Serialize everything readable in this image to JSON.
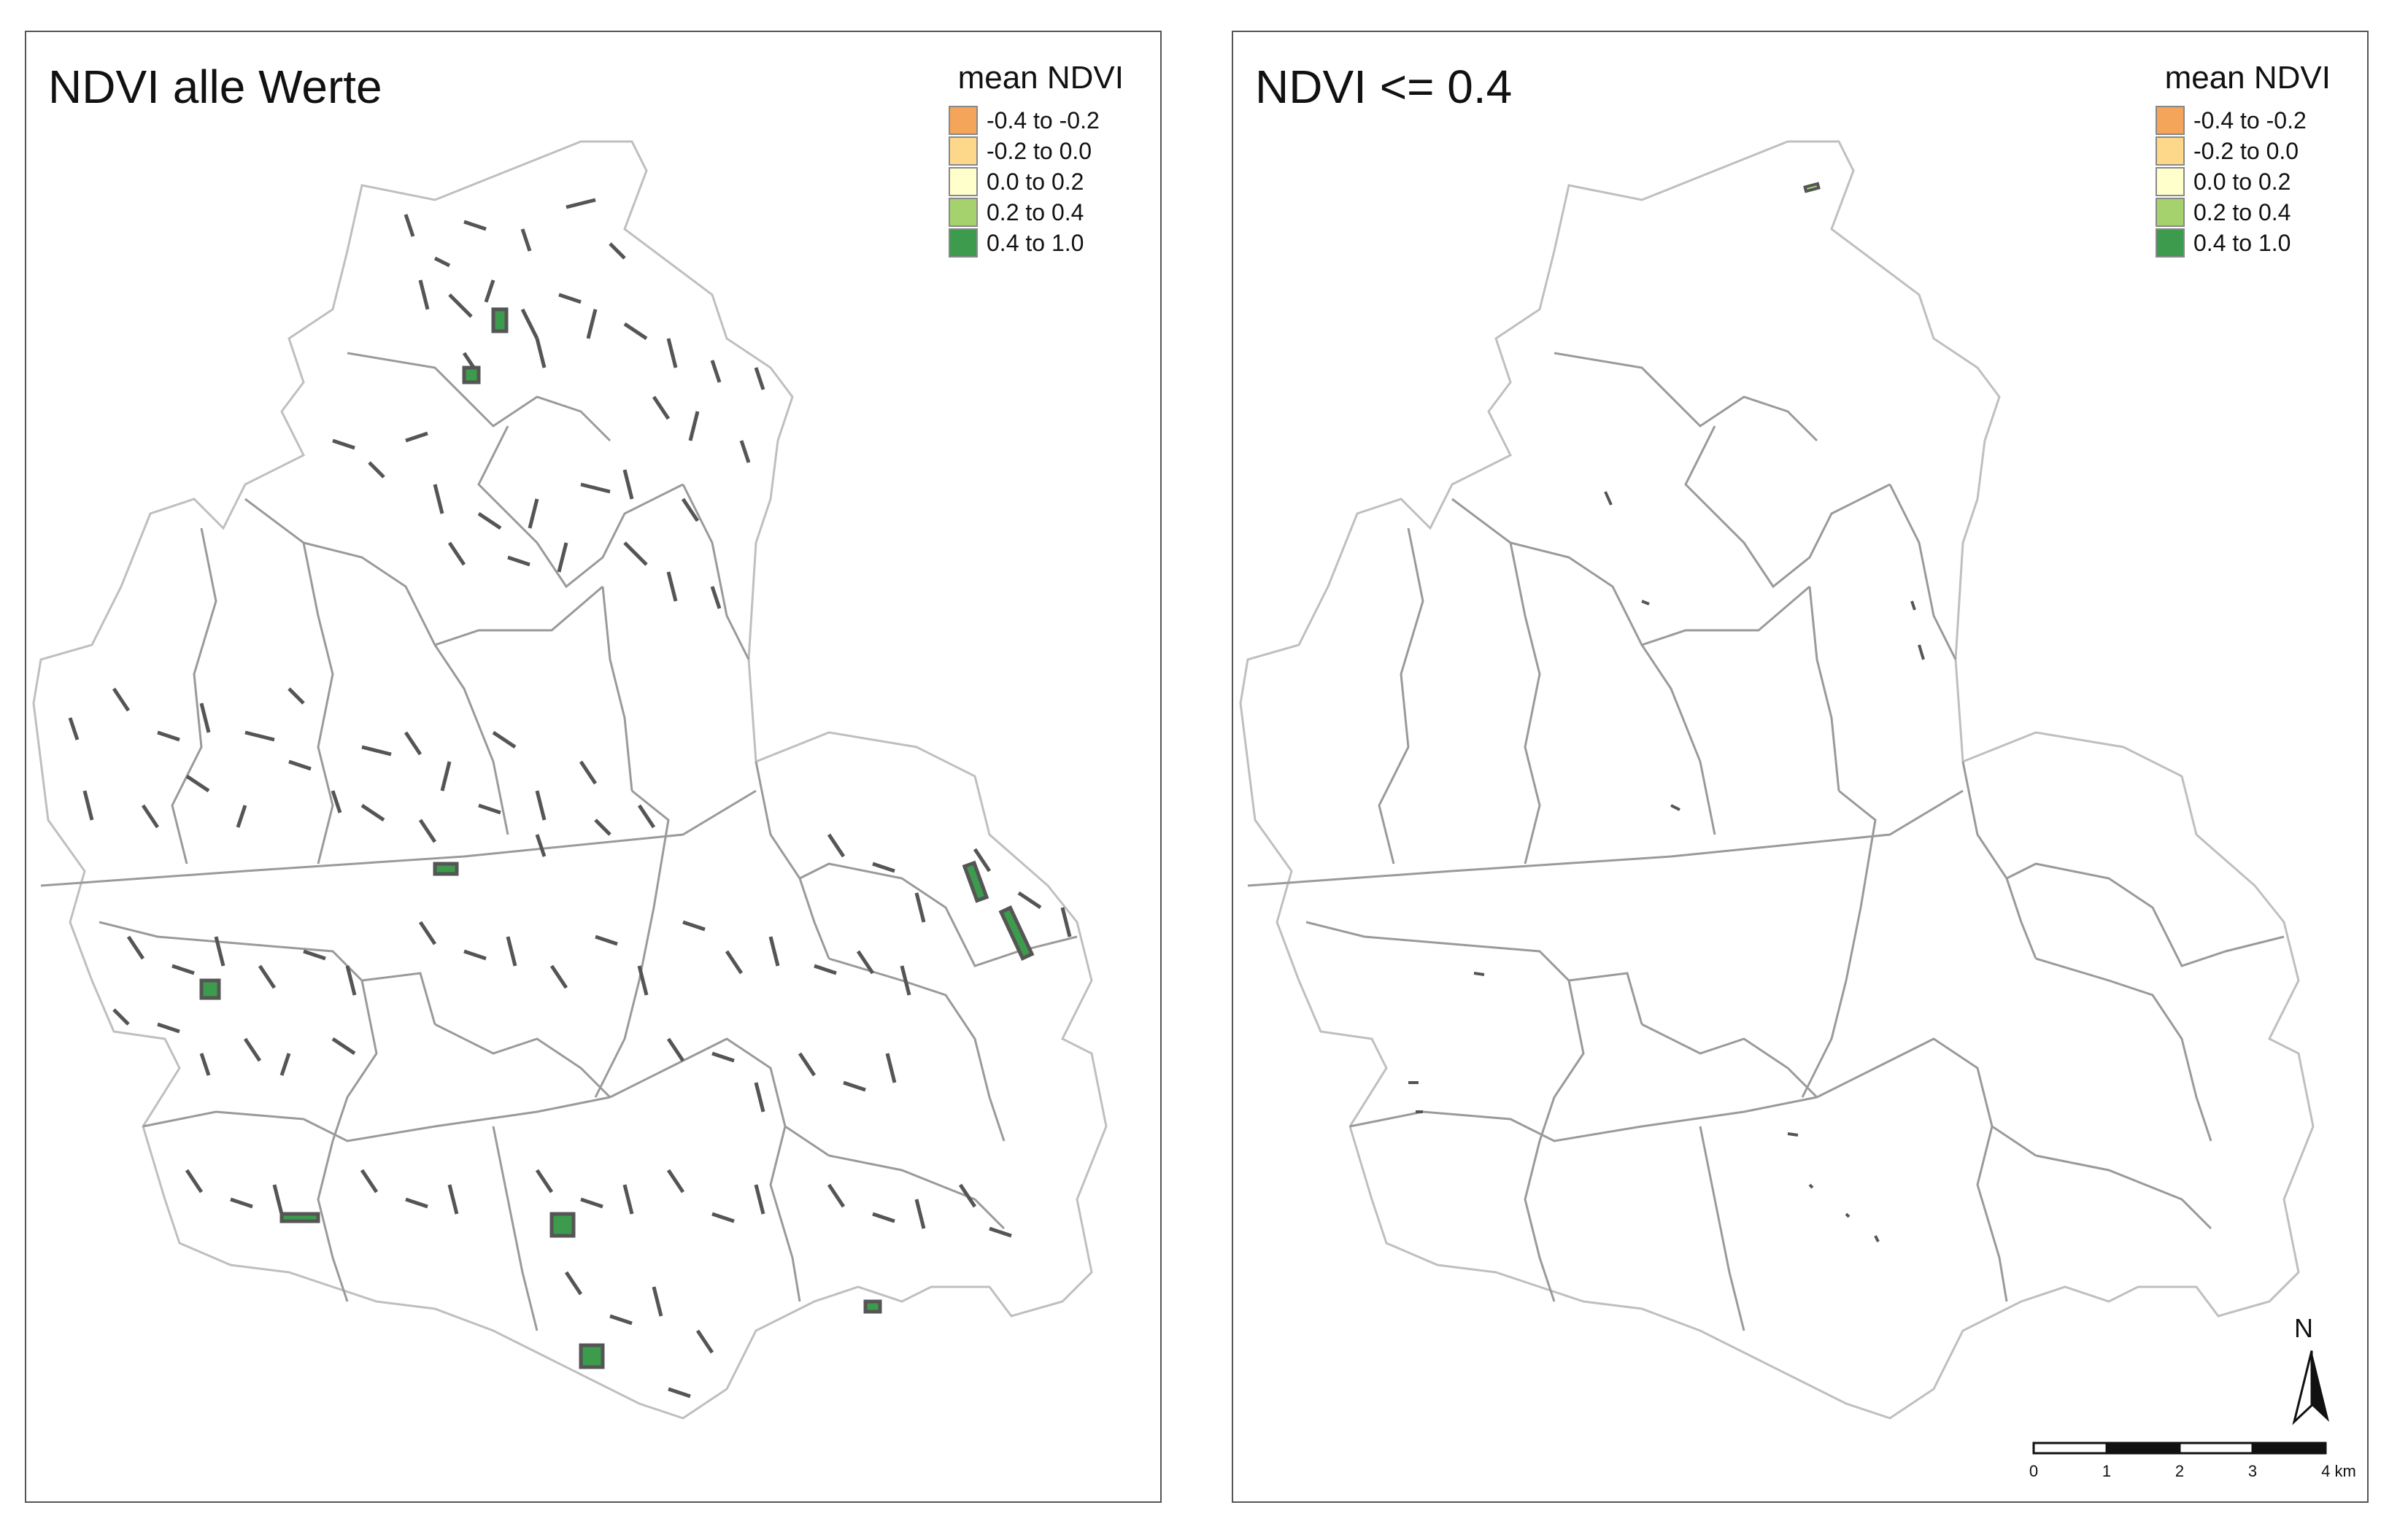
{
  "panels": [
    {
      "title": "NDVI alle Werte"
    },
    {
      "title": "NDVI <= 0.4"
    }
  ],
  "legend": {
    "title": "mean NDVI",
    "items": [
      {
        "label": "-0.4 to -0.2",
        "color": "#f4a55a"
      },
      {
        "label": "-0.2 to 0.0",
        "color": "#fdd88a"
      },
      {
        "label": "0.0 to 0.2",
        "color": "#ffffcc"
      },
      {
        "label": "0.2 to 0.4",
        "color": "#a6d26d"
      },
      {
        "label": "0.4 to 1.0",
        "color": "#3c9b4c"
      }
    ]
  },
  "north_arrow": {
    "label": "N"
  },
  "scale_bar": {
    "ticks": [
      "0",
      "1",
      "2",
      "3",
      "4 km"
    ]
  }
}
